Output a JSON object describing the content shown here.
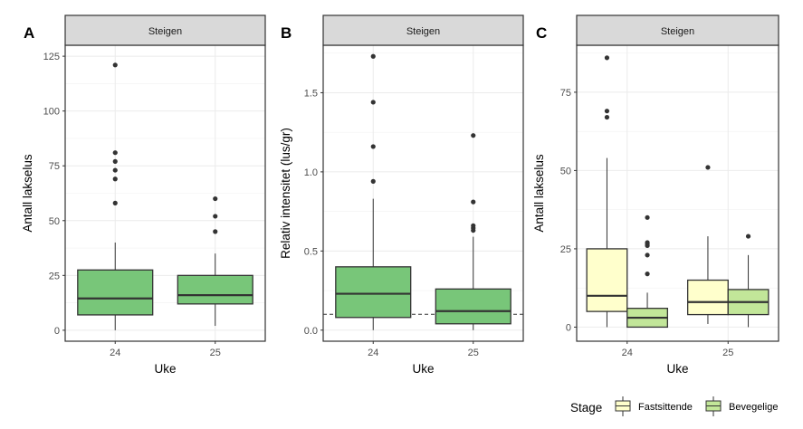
{
  "chart_data": [
    {
      "type": "box",
      "panel_label": "A",
      "strip": "Steigen",
      "xlabel": "Uke",
      "ylabel": "Antall lakselus",
      "ylim": [
        -5,
        130
      ],
      "yticks": [
        0,
        25,
        50,
        75,
        100,
        125
      ],
      "ytick_labels": [
        "0",
        "25",
        "50",
        "75",
        "100",
        "125"
      ],
      "categories": [
        "24",
        "25"
      ],
      "grid": true,
      "boxes": [
        {
          "x": "24",
          "group": "all",
          "min": 0,
          "q1": 7,
          "median": 14.5,
          "q3": 27.5,
          "max": 40,
          "outliers": [
            58,
            69,
            73,
            77,
            81,
            121
          ]
        },
        {
          "x": "25",
          "group": "all",
          "min": 2,
          "q1": 12,
          "median": 16,
          "q3": 25,
          "max": 35,
          "outliers": [
            45,
            52,
            60
          ]
        }
      ]
    },
    {
      "type": "box",
      "panel_label": "B",
      "strip": "Steigen",
      "xlabel": "Uke",
      "ylabel": "Relativ intensitet (lus/gr)",
      "ylim": [
        -0.07,
        1.8
      ],
      "yticks": [
        0,
        0.5,
        1,
        1.5
      ],
      "ytick_labels": [
        "0.0",
        "0.5",
        "1.0",
        "1.5"
      ],
      "categories": [
        "24",
        "25"
      ],
      "grid": true,
      "reference_line": 0.1,
      "boxes": [
        {
          "x": "24",
          "group": "all",
          "min": 0,
          "q1": 0.08,
          "median": 0.23,
          "q3": 0.4,
          "max": 0.83,
          "outliers": [
            0.94,
            1.16,
            1.44,
            1.73
          ]
        },
        {
          "x": "25",
          "group": "all",
          "min": 0,
          "q1": 0.04,
          "median": 0.12,
          "q3": 0.26,
          "max": 0.59,
          "outliers": [
            0.63,
            0.645,
            0.66,
            0.81,
            1.23
          ]
        }
      ]
    },
    {
      "type": "box",
      "panel_label": "C",
      "strip": "Steigen",
      "xlabel": "Uke",
      "ylabel": "Antall lakselus",
      "ylim": [
        -4.5,
        90
      ],
      "yticks": [
        0,
        25,
        50,
        75
      ],
      "ytick_labels": [
        "0",
        "25",
        "50",
        "75"
      ],
      "categories": [
        "24",
        "25"
      ],
      "grid": true,
      "legend": {
        "title": "Stage",
        "position": "bottom",
        "entries": [
          "Fastsittende",
          "Bevegelige"
        ]
      },
      "boxes": [
        {
          "x": "24",
          "group": "Fastsittende",
          "min": 0,
          "q1": 5,
          "median": 10,
          "q3": 25,
          "max": 54,
          "outliers": [
            67,
            69,
            86
          ]
        },
        {
          "x": "24",
          "group": "Bevegelige",
          "min": 0,
          "q1": 0,
          "median": 3,
          "q3": 6,
          "max": 11,
          "outliers": [
            17,
            23,
            26,
            26.5,
            27,
            35
          ]
        },
        {
          "x": "25",
          "group": "Fastsittende",
          "min": 1,
          "q1": 4,
          "median": 8,
          "q3": 15,
          "max": 29,
          "outliers": [
            51
          ]
        },
        {
          "x": "25",
          "group": "Bevegelige",
          "min": 0,
          "q1": 4,
          "median": 8,
          "q3": 12,
          "max": 23,
          "outliers": [
            29
          ]
        }
      ]
    }
  ],
  "colors": {
    "all": "#78c679",
    "Fastsittende": "#ffffcc",
    "Bevegelige": "#c2e699"
  }
}
